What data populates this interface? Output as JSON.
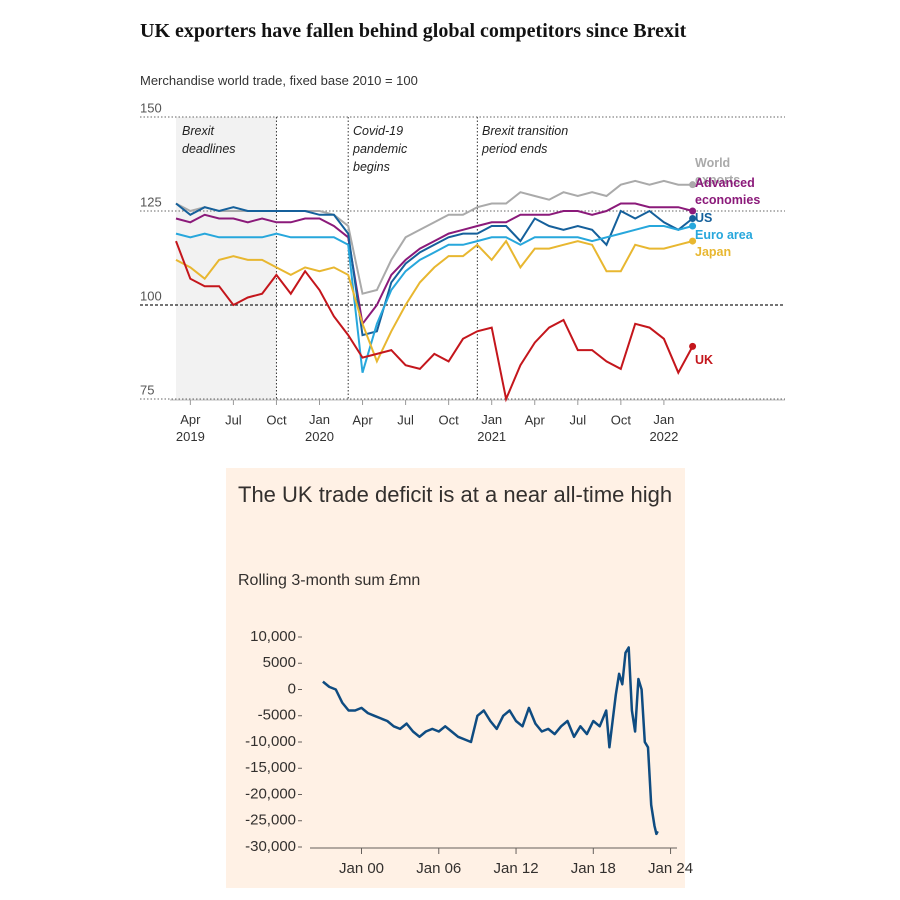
{
  "chart_data": [
    {
      "type": "line",
      "title": "UK exporters have fallen behind global competitors since Brexit",
      "subtitle": "Merchandise world trade, fixed base 2010 = 100",
      "categories": [
        null,
        "Apr 2019",
        null,
        null,
        "Jul",
        null,
        null,
        "Oct",
        null,
        null,
        "Jan 2020",
        null,
        null,
        "Apr",
        null,
        null,
        "Jul",
        null,
        null,
        "Oct",
        null,
        null,
        "Jan 2021",
        null,
        null,
        "Apr",
        null,
        null,
        "Jul",
        null,
        null,
        "Oct",
        null,
        null,
        "Jan 2022",
        null,
        null
      ],
      "ylim": [
        75,
        150
      ],
      "yticks": [
        75,
        100,
        125,
        150
      ],
      "grid": true,
      "annotations": [
        "Brexit deadlines",
        "Covid-19 pandemic begins",
        "Brexit transition period ends"
      ],
      "series": [
        {
          "name": "World exports",
          "color": "#aaaaaa",
          "values": [
            127,
            125,
            126,
            125,
            125,
            125,
            125,
            125,
            125,
            125,
            125,
            124,
            121,
            103,
            104,
            112,
            118,
            120,
            122,
            124,
            124,
            126,
            127,
            127,
            130,
            129,
            128,
            130,
            129,
            130,
            129,
            132,
            133,
            132,
            133,
            132,
            132
          ]
        },
        {
          "name": "Advanced economies",
          "color": "#8b1a7a",
          "values": [
            123,
            122,
            124,
            123,
            123,
            122,
            123,
            122,
            122,
            123,
            123,
            121,
            118,
            95,
            100,
            108,
            112,
            115,
            117,
            119,
            120,
            121,
            122,
            122,
            124,
            124,
            124,
            125,
            125,
            124,
            125,
            127,
            127,
            126,
            126,
            126,
            125
          ]
        },
        {
          "name": "US",
          "color": "#15609b",
          "values": [
            127,
            124,
            126,
            125,
            126,
            125,
            125,
            125,
            125,
            125,
            124,
            124,
            119,
            92,
            93,
            106,
            111,
            114,
            116,
            118,
            119,
            119,
            121,
            121,
            117,
            123,
            121,
            120,
            121,
            120,
            116,
            125,
            123,
            125,
            122,
            120,
            123
          ]
        },
        {
          "name": "Euro area",
          "color": "#27a7dc",
          "values": [
            119,
            118,
            119,
            118,
            118,
            118,
            118,
            119,
            118,
            118,
            118,
            118,
            116,
            82,
            95,
            104,
            109,
            112,
            114,
            116,
            116,
            117,
            118,
            118,
            116,
            118,
            118,
            118,
            118,
            117,
            118,
            119,
            120,
            121,
            121,
            120,
            121
          ]
        },
        {
          "name": "Japan",
          "color": "#e8b730",
          "values": [
            112,
            110,
            107,
            112,
            113,
            112,
            112,
            110,
            108,
            110,
            109,
            110,
            108,
            95,
            85,
            93,
            100,
            106,
            110,
            113,
            113,
            116,
            112,
            117,
            110,
            115,
            115,
            116,
            117,
            116,
            109,
            109,
            116,
            115,
            115,
            116,
            117
          ]
        },
        {
          "name": "UK",
          "color": "#c4161c",
          "values": [
            117,
            107,
            105,
            105,
            100,
            102,
            103,
            108,
            103,
            109,
            104,
            97,
            92,
            86,
            87,
            88,
            84,
            83,
            87,
            85,
            91,
            93,
            94,
            75,
            84,
            90,
            94,
            96,
            88,
            88,
            85,
            83,
            95,
            94,
            91,
            82,
            89
          ]
        }
      ]
    },
    {
      "type": "line",
      "title": "The UK trade deficit is at a near all-time high",
      "subtitle": "Rolling 3-month sum £mn",
      "x": [
        1997.0,
        1997.5,
        1998.0,
        1998.5,
        1999.0,
        1999.5,
        2000.0,
        2000.5,
        2001.0,
        2001.5,
        2002.0,
        2002.5,
        2003.0,
        2003.5,
        2004.0,
        2004.5,
        2005.0,
        2005.5,
        2006.0,
        2006.5,
        2007.0,
        2007.5,
        2008.0,
        2008.5,
        2009.0,
        2009.5,
        2010.0,
        2010.5,
        2011.0,
        2011.5,
        2012.0,
        2012.5,
        2013.0,
        2013.5,
        2014.0,
        2014.5,
        2015.0,
        2015.5,
        2016.0,
        2016.5,
        2017.0,
        2017.5,
        2018.0,
        2018.5,
        2019.0,
        2019.25,
        2019.5,
        2019.75,
        2020.0,
        2020.25,
        2020.5,
        2020.75,
        2021.0,
        2021.25,
        2021.5,
        2021.75,
        2022.0,
        2022.25,
        2022.5,
        2022.75,
        2022.9,
        2023.0
      ],
      "values": [
        1500,
        500,
        0,
        -2500,
        -4000,
        -4000,
        -3500,
        -4500,
        -5000,
        -5500,
        -6000,
        -7000,
        -7500,
        -6500,
        -8000,
        -9000,
        -8000,
        -7500,
        -8000,
        -7000,
        -8000,
        -9000,
        -9500,
        -10000,
        -5000,
        -4000,
        -6000,
        -7500,
        -5000,
        -4000,
        -6000,
        -7000,
        -3500,
        -6500,
        -8000,
        -7500,
        -8500,
        -7000,
        -6000,
        -9000,
        -7000,
        -8500,
        -6000,
        -7000,
        -4000,
        -11000,
        -6000,
        -1000,
        3000,
        1000,
        7000,
        8000,
        -4000,
        -8000,
        2000,
        0,
        -10000,
        -11000,
        -22000,
        -26000,
        -27500,
        -27000
      ],
      "color": "#0f4c81",
      "xlim": [
        1996,
        2024.5
      ],
      "xticks": [
        {
          "value": 2000,
          "label": "Jan 00"
        },
        {
          "value": 2006,
          "label": "Jan 06"
        },
        {
          "value": 2012,
          "label": "Jan 12"
        },
        {
          "value": 2018,
          "label": "Jan 18"
        },
        {
          "value": 2024,
          "label": "Jan 24"
        }
      ],
      "ylim": [
        -30000,
        10000
      ],
      "yticks": [
        {
          "value": 10000,
          "label": "10,000"
        },
        5000,
        0,
        -5000,
        {
          "value": -10000,
          "label": "-10,000"
        },
        {
          "value": -15000,
          "label": "-15,000"
        },
        {
          "value": -20000,
          "label": "-20,000"
        },
        {
          "value": -25000,
          "label": "-25,000"
        },
        {
          "value": -30000,
          "label": "-30,000"
        }
      ]
    }
  ]
}
